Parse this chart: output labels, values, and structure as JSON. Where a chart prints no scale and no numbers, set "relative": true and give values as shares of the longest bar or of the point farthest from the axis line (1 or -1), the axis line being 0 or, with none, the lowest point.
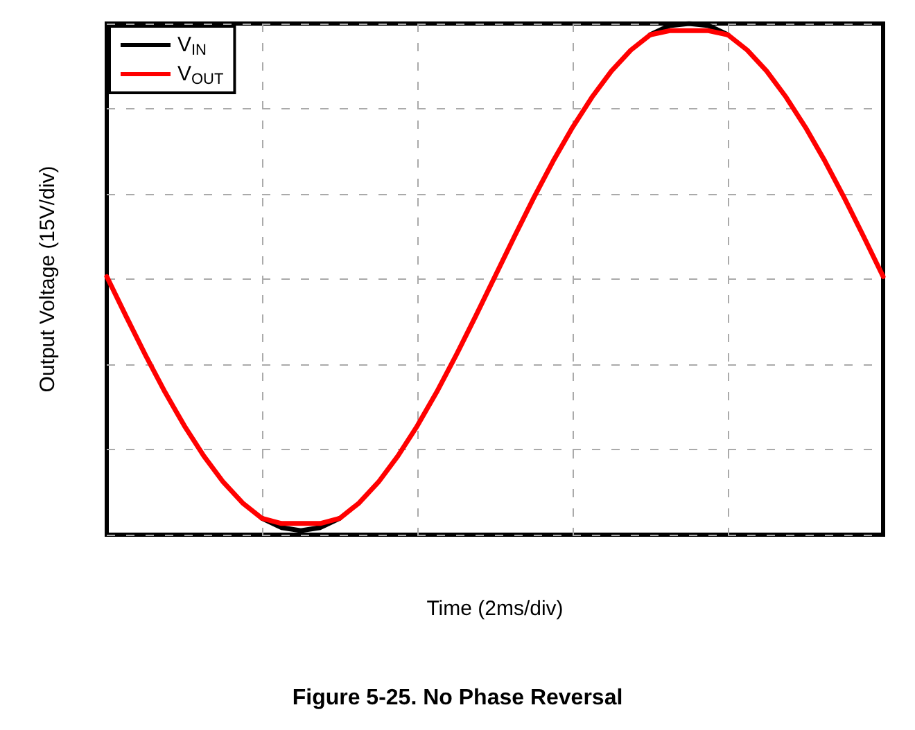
{
  "chart_data": {
    "type": "line",
    "title": "Figure 5-25. No Phase Reversal",
    "xlabel": "Time (2ms/div)",
    "ylabel": "Output Voltage (15V/div)",
    "relative": true,
    "categories": [
      null,
      null,
      null,
      null,
      null,
      null,
      null,
      null,
      null,
      null,
      null,
      null,
      null,
      null,
      null,
      null,
      null,
      null,
      null,
      null,
      null,
      null,
      null,
      null,
      null,
      null,
      null,
      null,
      null,
      null,
      null,
      null,
      null,
      null,
      null,
      null,
      null,
      null,
      null,
      null,
      null
    ],
    "series": [
      {
        "name": "V$_{IN}$",
        "color": "#000000",
        "values": [
          null,
          null,
          null,
          null,
          null,
          null,
          null,
          null,
          0.032,
          0.014,
          0.008,
          0.014,
          0.032,
          null,
          null,
          null,
          null,
          null,
          null,
          null,
          null,
          null,
          null,
          null,
          null,
          null,
          null,
          null,
          0.978,
          0.996,
          1.0,
          0.996,
          0.978,
          null,
          null,
          null,
          null,
          null,
          null,
          null,
          null
        ]
      },
      {
        "name": "V$_{OUT}$",
        "color": "#ff0000",
        "values": [
          0.505,
          0.427,
          0.351,
          0.279,
          0.213,
          0.154,
          0.103,
          0.062,
          0.032,
          0.022,
          0.022,
          0.022,
          0.032,
          0.062,
          0.103,
          0.154,
          0.213,
          0.279,
          0.351,
          0.427,
          0.505,
          0.583,
          0.659,
          0.731,
          0.797,
          0.856,
          0.907,
          0.948,
          0.978,
          0.986,
          0.986,
          0.986,
          0.978,
          0.948,
          0.907,
          0.856,
          0.797,
          0.731,
          0.659,
          0.583,
          0.505
        ]
      }
    ],
    "grid": true,
    "legend": "top left",
    "marker": "none",
    "line_style": "solid"
  }
}
